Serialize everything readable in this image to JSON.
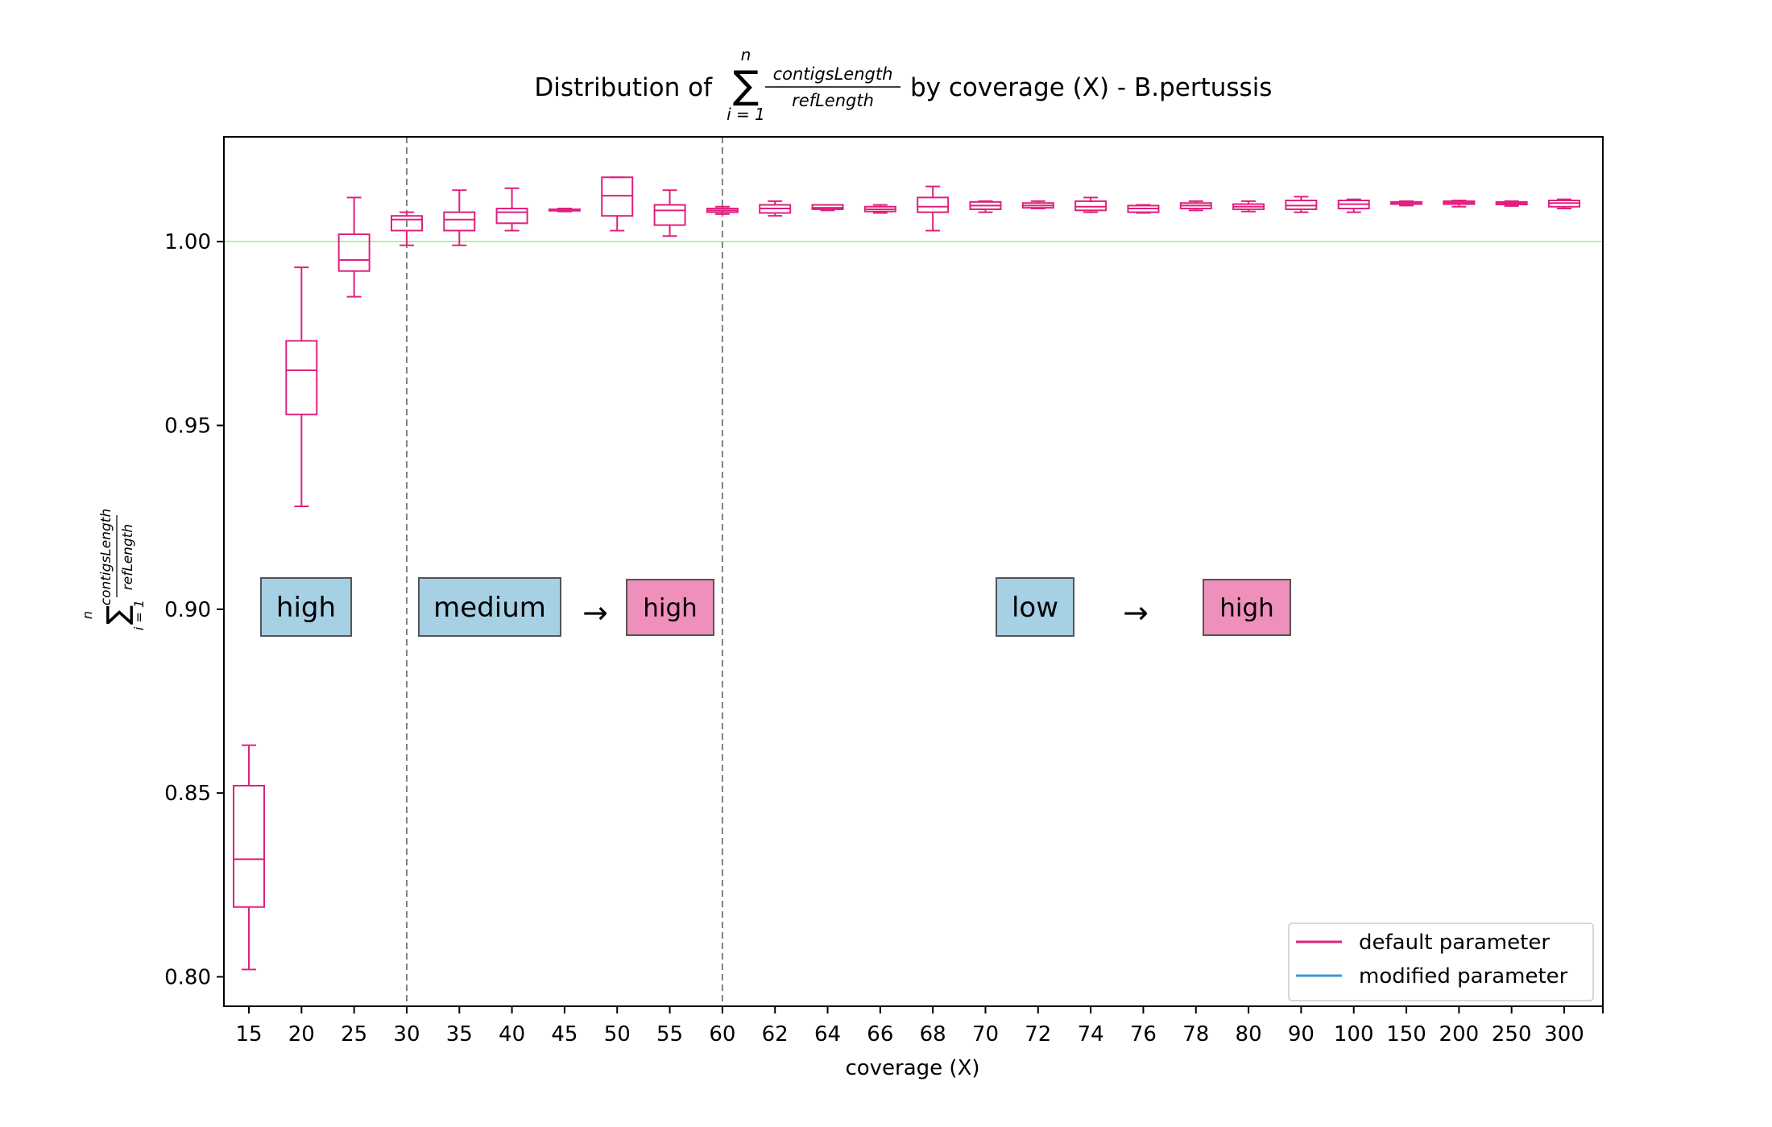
{
  "chart_data": {
    "type": "box",
    "title": {
      "prefix": "Distribution of",
      "sum_symbol": "∑",
      "sum_upper": "n",
      "sum_lower": "i = 1",
      "numerator": "contigsLength",
      "denominator": "refLength",
      "suffix": "by coverage (X) - B.pertussis"
    },
    "xlabel": "coverage (X)",
    "ylabel": {
      "sum_symbol": "∑",
      "sum_upper": "n",
      "sum_lower": "i = 1",
      "numerator": "contigsLength",
      "denominator": "refLength"
    },
    "ylim": [
      0.792,
      1.0285
    ],
    "yticks": [
      "0.80",
      "0.85",
      "0.90",
      "0.95",
      "1.00"
    ],
    "ytick_values": [
      0.8,
      0.85,
      0.9,
      0.95,
      1.0
    ],
    "categories": [
      "15",
      "20",
      "25",
      "30",
      "35",
      "40",
      "45",
      "50",
      "55",
      "60",
      "62",
      "64",
      "66",
      "68",
      "70",
      "72",
      "74",
      "76",
      "78",
      "80",
      "90",
      "100",
      "150",
      "200",
      "250",
      "300"
    ],
    "reference_line": 1.0,
    "reference_line_color": "#90ee90",
    "box_color": "#e0207e",
    "modified_color": "#3a9ad9",
    "divider_color": "#808080",
    "divider_after_categories": [
      "30",
      "60"
    ],
    "series": [
      {
        "name": "default parameter",
        "boxes": [
          {
            "whislo": 0.802,
            "q1": 0.819,
            "med": 0.832,
            "q3": 0.852,
            "whishi": 0.863
          },
          {
            "whislo": 0.928,
            "q1": 0.953,
            "med": 0.965,
            "q3": 0.973,
            "whishi": 0.993
          },
          {
            "whislo": 0.985,
            "q1": 0.992,
            "med": 0.995,
            "q3": 1.002,
            "whishi": 1.012
          },
          {
            "whislo": 0.999,
            "q1": 1.003,
            "med": 1.006,
            "q3": 1.007,
            "whishi": 1.008
          },
          {
            "whislo": 0.999,
            "q1": 1.003,
            "med": 1.006,
            "q3": 1.008,
            "whishi": 1.014
          },
          {
            "whislo": 1.003,
            "q1": 1.005,
            "med": 1.008,
            "q3": 1.009,
            "whishi": 1.0145
          },
          {
            "whislo": 1.0082,
            "q1": 1.0084,
            "med": 1.0086,
            "q3": 1.0088,
            "whishi": 1.009
          },
          {
            "whislo": 1.003,
            "q1": 1.007,
            "med": 1.0125,
            "q3": 1.0175,
            "whishi": 1.0175
          },
          {
            "whislo": 1.0015,
            "q1": 1.0045,
            "med": 1.0085,
            "q3": 1.01,
            "whishi": 1.014
          },
          {
            "whislo": 1.0075,
            "q1": 1.008,
            "med": 1.0085,
            "q3": 1.009,
            "whishi": 1.0095
          },
          {
            "whislo": 1.007,
            "q1": 1.0078,
            "med": 1.009,
            "q3": 1.01,
            "whishi": 1.011
          },
          {
            "whislo": 1.0085,
            "q1": 1.0088,
            "med": 1.0092,
            "q3": 1.01,
            "whishi": 1.01
          },
          {
            "whislo": 1.0078,
            "q1": 1.0082,
            "med": 1.0088,
            "q3": 1.0095,
            "whishi": 1.01
          },
          {
            "whislo": 1.003,
            "q1": 1.008,
            "med": 1.0095,
            "q3": 1.012,
            "whishi": 1.015
          },
          {
            "whislo": 1.008,
            "q1": 1.0088,
            "med": 1.0098,
            "q3": 1.0108,
            "whishi": 1.011
          },
          {
            "whislo": 1.009,
            "q1": 1.0092,
            "med": 1.0098,
            "q3": 1.0105,
            "whishi": 1.011
          },
          {
            "whislo": 1.008,
            "q1": 1.0085,
            "med": 1.0095,
            "q3": 1.011,
            "whishi": 1.012
          },
          {
            "whislo": 1.0078,
            "q1": 1.008,
            "med": 1.009,
            "q3": 1.0098,
            "whishi": 1.01
          },
          {
            "whislo": 1.0085,
            "q1": 1.009,
            "med": 1.0098,
            "q3": 1.0105,
            "whishi": 1.011
          },
          {
            "whislo": 1.0082,
            "q1": 1.0088,
            "med": 1.0095,
            "q3": 1.0102,
            "whishi": 1.011
          },
          {
            "whislo": 1.008,
            "q1": 1.0088,
            "med": 1.0098,
            "q3": 1.0112,
            "whishi": 1.0122
          },
          {
            "whislo": 1.008,
            "q1": 1.009,
            "med": 1.0102,
            "q3": 1.0112,
            "whishi": 1.0115
          },
          {
            "whislo": 1.0098,
            "q1": 1.0102,
            "med": 1.0106,
            "q3": 1.0108,
            "whishi": 1.011
          },
          {
            "whislo": 1.0095,
            "q1": 1.0102,
            "med": 1.0106,
            "q3": 1.011,
            "whishi": 1.0112
          },
          {
            "whislo": 1.0097,
            "q1": 1.0101,
            "med": 1.0105,
            "q3": 1.0108,
            "whishi": 1.011
          },
          {
            "whislo": 1.009,
            "q1": 1.0095,
            "med": 1.0105,
            "q3": 1.0112,
            "whishi": 1.0115
          }
        ]
      },
      {
        "name": "modified parameter"
      }
    ],
    "annotations": [
      {
        "text": "high",
        "fill": "#a6d0e4",
        "center_category": "15.5"
      },
      {
        "text": "medium",
        "fill": "#a6d0e4",
        "center_category": "35"
      },
      {
        "text": "high",
        "fill": "#ee90bb",
        "center_category": "55"
      },
      {
        "text": "low",
        "fill": "#a6d0e4",
        "center_category": "70"
      },
      {
        "text": "high",
        "fill": "#ee90bb",
        "center_category": "80"
      }
    ],
    "arrows": [
      {
        "text": "→"
      },
      {
        "text": "→"
      }
    ],
    "legend": {
      "placement": "lower-right",
      "entries": [
        "default parameter",
        "modified parameter"
      ]
    }
  }
}
